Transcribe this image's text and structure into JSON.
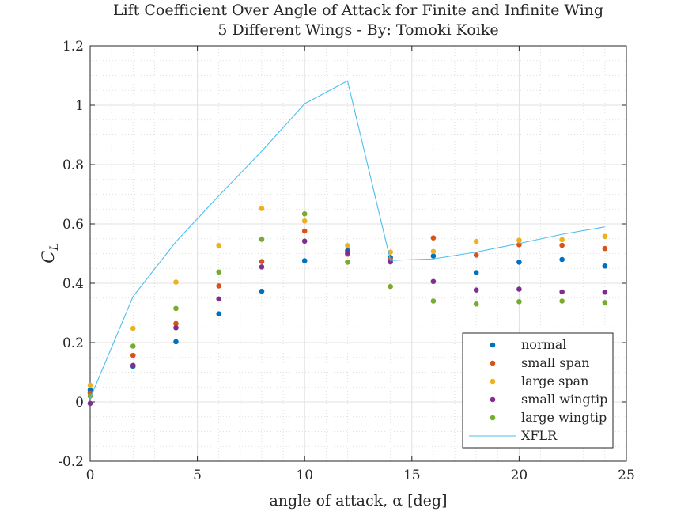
{
  "chart_data": {
    "type": "scatter",
    "title": "Lift Coefficient Over Angle of Attack for Finite and Infinite Wing",
    "subtitle": "5 Different Wings - By: Tomoki Koike",
    "xlabel": "angle of attack, α [deg]",
    "ylabel_main": "C",
    "ylabel_sub": "L",
    "xlim": [
      0,
      25
    ],
    "ylim": [
      -0.2,
      1.2
    ],
    "xticks": [
      0,
      5,
      10,
      15,
      20,
      25
    ],
    "xtick_labels": [
      "0",
      "5",
      "10",
      "15",
      "20",
      "25"
    ],
    "yticks": [
      -0.2,
      0,
      0.2,
      0.4,
      0.6,
      0.8,
      1,
      1.2
    ],
    "ytick_labels": [
      "-0.2",
      "0",
      "0.2",
      "0.4",
      "0.6",
      "0.8",
      "1",
      "1.2"
    ],
    "grid": true,
    "minor_grid": true,
    "legend_position": "bottom-right",
    "x": [
      0,
      2,
      4,
      6,
      8,
      10,
      12,
      14,
      16,
      18,
      20,
      22,
      24
    ],
    "series": [
      {
        "name": "normal",
        "style": "markers",
        "color": "#0072BD",
        "values": [
          0.04,
          0.12,
          0.203,
          0.297,
          0.373,
          0.476,
          0.51,
          0.487,
          0.492,
          0.436,
          0.471,
          0.48,
          0.458
        ]
      },
      {
        "name": "small span",
        "style": "markers",
        "color": "#D95319",
        "values": [
          0.03,
          0.157,
          0.264,
          0.391,
          0.473,
          0.576,
          0.498,
          0.48,
          0.553,
          0.495,
          0.53,
          0.528,
          0.517
        ]
      },
      {
        "name": "large span",
        "style": "markers",
        "color": "#EDB120",
        "values": [
          0.056,
          0.248,
          0.404,
          0.527,
          0.652,
          0.61,
          0.527,
          0.505,
          0.507,
          0.541,
          0.545,
          0.547,
          0.558
        ]
      },
      {
        "name": "small wingtip",
        "style": "markers",
        "color": "#7E2F8E",
        "values": [
          -0.005,
          0.123,
          0.25,
          0.347,
          0.455,
          0.542,
          0.503,
          0.472,
          0.406,
          0.377,
          0.38,
          0.371,
          0.37
        ]
      },
      {
        "name": "large wingtip",
        "style": "markers",
        "color": "#77AC30",
        "values": [
          0.02,
          0.188,
          0.315,
          0.438,
          0.548,
          0.634,
          0.471,
          0.389,
          0.34,
          0.33,
          0.338,
          0.34,
          0.335
        ]
      },
      {
        "name": "XFLR",
        "style": "line",
        "color": "#4DBEEE",
        "x": [
          0,
          2,
          4,
          6,
          8,
          10,
          12,
          14,
          16,
          18,
          20,
          22,
          24
        ],
        "values": [
          0.012,
          0.355,
          0.54,
          0.695,
          0.845,
          1.005,
          1.082,
          0.477,
          0.482,
          0.505,
          0.534,
          0.565,
          0.59
        ]
      }
    ]
  }
}
